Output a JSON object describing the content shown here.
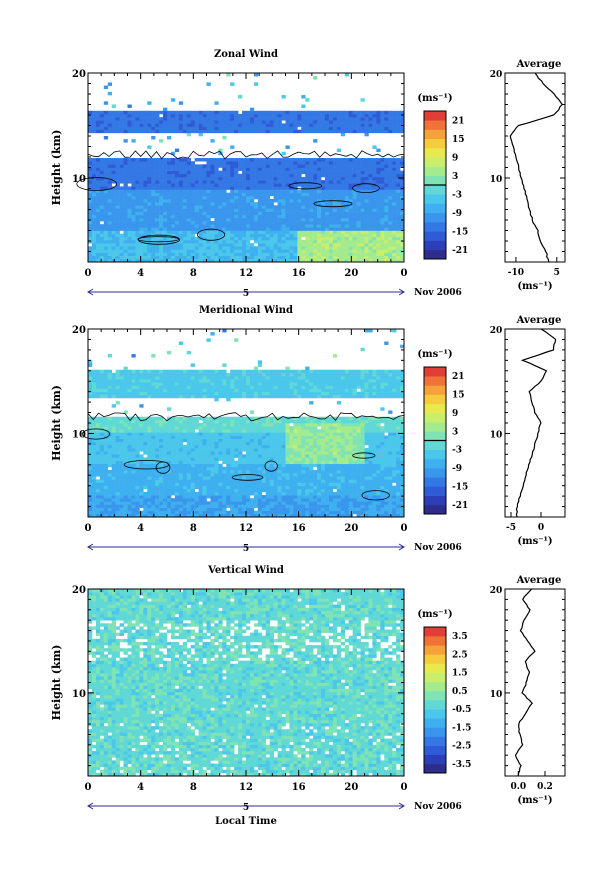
{
  "chart_data": [
    {
      "type": "heatmap",
      "title": "Zonal Wind",
      "ylabel": "Height (km)",
      "xlabel": "",
      "ylim": [
        2,
        20
      ],
      "xlim": [
        0,
        24
      ],
      "x_ticks": [
        "0",
        "4",
        "8",
        "12",
        "16",
        "20",
        "0"
      ],
      "day_label": "5",
      "date_label": "Nov 2006",
      "colorbar": {
        "unit": "(ms⁻¹)",
        "ticks": [
          "21",
          "15",
          "9",
          "3",
          "-3",
          "-9",
          "-15",
          "-21"
        ],
        "range": [
          -24,
          24
        ],
        "zero_contour": 0
      },
      "field": {
        "layers": [
          {
            "height": [
              2,
              5
            ],
            "value": -6
          },
          {
            "height": [
              5,
              9
            ],
            "value": -10
          },
          {
            "height": [
              9,
              12
            ],
            "value": -14
          },
          {
            "height": [
              14,
              16.5
            ],
            "value": -14
          }
        ],
        "gap_km": [
          12.4,
          14.2
        ],
        "positive_patch": {
          "time": [
            16,
            24
          ],
          "height": [
            2,
            5
          ],
          "value": 3
        }
      },
      "average": {
        "title": "Average",
        "xlabel": "(ms⁻¹)",
        "x_ticks": [
          "-10",
          "5"
        ],
        "xlim": [
          -14,
          8
        ],
        "ylim": [
          2,
          20
        ],
        "y_ticks": [
          "10",
          "20"
        ],
        "profile": {
          "height": [
            2,
            3,
            4,
            5,
            6,
            7,
            8,
            9,
            10,
            11,
            12,
            13,
            14,
            15,
            16,
            17,
            18,
            19,
            20
          ],
          "value": [
            2,
            1,
            -1,
            -2,
            -4,
            -5,
            -6,
            -7,
            -8,
            -9,
            -10,
            -11,
            -12,
            -9,
            4,
            7,
            4,
            0,
            -3
          ]
        }
      }
    },
    {
      "type": "heatmap",
      "title": "Meridional Wind",
      "ylabel": "Height (km)",
      "xlabel": "",
      "ylim": [
        2,
        20
      ],
      "xlim": [
        0,
        24
      ],
      "x_ticks": [
        "0",
        "4",
        "8",
        "12",
        "16",
        "20",
        "0"
      ],
      "day_label": "5",
      "date_label": "Nov 2006",
      "colorbar": {
        "unit": "(ms⁻¹)",
        "ticks": [
          "21",
          "15",
          "9",
          "3",
          "-3",
          "-9",
          "-15",
          "-21"
        ],
        "range": [
          -24,
          24
        ],
        "zero_contour": 0
      },
      "field": {
        "layers": [
          {
            "height": [
              2,
              4
            ],
            "value": -9
          },
          {
            "height": [
              4,
              7
            ],
            "value": -7
          },
          {
            "height": [
              7,
              10
            ],
            "value": -5
          },
          {
            "height": [
              10,
              11.5
            ],
            "value": -1
          },
          {
            "height": [
              13,
              16
            ],
            "value": -4
          }
        ],
        "gap_km": [
          11.8,
          13.3
        ],
        "positive_patch": {
          "time": [
            15,
            21
          ],
          "height": [
            7,
            11
          ],
          "value": 1
        }
      },
      "average": {
        "title": "Average",
        "xlabel": "(ms⁻¹)",
        "x_ticks": [
          "-5",
          "0"
        ],
        "xlim": [
          -6,
          4
        ],
        "ylim": [
          2,
          20
        ],
        "y_ticks": [
          "10",
          "20"
        ],
        "profile": {
          "height": [
            2,
            3,
            4,
            5,
            6,
            7,
            8,
            9,
            10,
            11,
            12,
            13,
            14,
            15,
            16,
            17,
            18,
            19,
            20
          ],
          "value": [
            -4,
            -4,
            -3.5,
            -3,
            -2.5,
            -2,
            -1.5,
            -1,
            -0.5,
            0,
            -1,
            -1.5,
            -2,
            0,
            1,
            -3,
            2,
            2.5,
            0
          ]
        }
      }
    },
    {
      "type": "heatmap",
      "title": "Vertical Wind",
      "ylabel": "Height (km)",
      "xlabel": "Local Time",
      "ylim": [
        2,
        20
      ],
      "xlim": [
        0,
        24
      ],
      "x_ticks": [
        "0",
        "4",
        "8",
        "12",
        "16",
        "20",
        "0"
      ],
      "day_label": "5",
      "date_label": "Nov 2006",
      "colorbar": {
        "unit": "(ms⁻¹)",
        "ticks": [
          "3.5",
          "2.5",
          "1.5",
          "0.5",
          "-0.5",
          "-1.5",
          "-2.5",
          "-3.5"
        ],
        "range": [
          -4,
          4
        ],
        "zero_contour": null
      },
      "field": {
        "layers": [
          {
            "height": [
              2,
              20
            ],
            "value": -0.2
          }
        ],
        "gap_km": [],
        "positive_patch": null
      },
      "average": {
        "title": "Average",
        "xlabel": "(ms⁻¹)",
        "x_ticks": [
          "0.0",
          "0.2"
        ],
        "xlim": [
          -0.1,
          0.35
        ],
        "ylim": [
          2,
          20
        ],
        "y_ticks": [
          "10",
          "20"
        ],
        "profile": {
          "height": [
            2,
            3,
            4,
            5,
            6,
            7,
            8,
            9,
            10,
            11,
            12,
            13,
            14,
            15,
            16,
            17,
            18,
            19,
            20
          ],
          "value": [
            0.0,
            0.02,
            -0.02,
            0.03,
            0.01,
            0.0,
            0.05,
            0.1,
            0.03,
            0.06,
            0.08,
            0.05,
            0.12,
            0.07,
            0.02,
            0.04,
            0.09,
            0.03,
            0.1
          ]
        }
      }
    }
  ]
}
